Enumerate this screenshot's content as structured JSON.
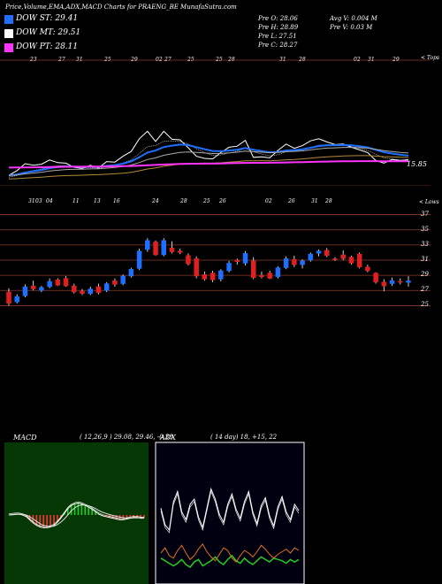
{
  "header": {
    "title": "Price,Volume,EMA,ADX,MACD Charts for PRAENG_BE MunafaSutra.com"
  },
  "legend": [
    {
      "label": "DOW ST: 29.41",
      "color": "#1f6fff"
    },
    {
      "label": "DOW MT: 29.51",
      "color": "#ffffff"
    },
    {
      "label": "DOW PT: 28.11",
      "color": "#ff33ff"
    }
  ],
  "ohlc": {
    "open": "Pre   O: 28.06",
    "high": "Pre   H: 28.89",
    "low": "Pre   L: 27.51",
    "close": "Pre   C: 28.27",
    "avg_volume": "Avg V: 0.004  M",
    "pre_volume": "Pre   V: 0.03 M"
  },
  "panel1": {
    "tops_label": "< Tops",
    "last_value": "15.85",
    "top_dates": [
      "23",
      "27",
      "31",
      "25",
      "29",
      "02",
      "27",
      "25",
      "25",
      "28",
      "31",
      "28",
      "02",
      "31",
      "29"
    ]
  },
  "panel2": {
    "lows_label": "< Lows",
    "low_dates": [
      "31",
      "03",
      "04",
      "11",
      "13",
      "16",
      "24",
      "28",
      "25",
      "26",
      "02",
      "26",
      "31",
      "28"
    ],
    "price_ticks": [
      "37",
      "35",
      "33",
      "31",
      "29",
      "27",
      "25"
    ]
  },
  "macd": {
    "label": "MACD",
    "values": "( 12,26,9 ) 29.08,  29.46,  -0.38"
  },
  "adx": {
    "label": "ADX",
    "values": "( 14  day) 18,  +15,  22"
  },
  "chart_data": [
    {
      "type": "candlestick",
      "name": "price",
      "yticks": [
        37,
        35,
        33,
        31,
        29,
        27,
        25
      ],
      "ylim": [
        24,
        38
      ],
      "candles": [
        {
          "o": 26.8,
          "h": 27.3,
          "l": 25.0,
          "c": 25.3
        },
        {
          "o": 25.5,
          "h": 26.5,
          "l": 25.3,
          "c": 26.2
        },
        {
          "o": 26.3,
          "h": 27.8,
          "l": 26.1,
          "c": 27.5
        },
        {
          "o": 27.6,
          "h": 28.3,
          "l": 27.0,
          "c": 27.2
        },
        {
          "o": 27.0,
          "h": 27.6,
          "l": 26.8,
          "c": 27.4
        },
        {
          "o": 27.5,
          "h": 28.6,
          "l": 27.3,
          "c": 28.2
        },
        {
          "o": 28.4,
          "h": 28.6,
          "l": 27.6,
          "c": 27.7
        },
        {
          "o": 28.6,
          "h": 28.9,
          "l": 27.5,
          "c": 27.6
        },
        {
          "o": 27.6,
          "h": 27.9,
          "l": 26.6,
          "c": 26.8
        },
        {
          "o": 26.9,
          "h": 27.2,
          "l": 26.4,
          "c": 26.6
        },
        {
          "o": 26.6,
          "h": 27.5,
          "l": 26.4,
          "c": 27.2
        },
        {
          "o": 27.5,
          "h": 27.9,
          "l": 26.5,
          "c": 26.7
        },
        {
          "o": 27.0,
          "h": 28.1,
          "l": 26.8,
          "c": 27.9
        },
        {
          "o": 28.3,
          "h": 28.6,
          "l": 27.5,
          "c": 27.8
        },
        {
          "o": 27.9,
          "h": 29.1,
          "l": 27.7,
          "c": 28.9
        },
        {
          "o": 28.9,
          "h": 30.0,
          "l": 28.7,
          "c": 29.8
        },
        {
          "o": 29.9,
          "h": 32.5,
          "l": 29.7,
          "c": 32.2
        },
        {
          "o": 32.4,
          "h": 33.9,
          "l": 32.1,
          "c": 33.6
        },
        {
          "o": 33.4,
          "h": 33.6,
          "l": 31.6,
          "c": 31.7
        },
        {
          "o": 31.7,
          "h": 33.9,
          "l": 31.5,
          "c": 33.6
        },
        {
          "o": 32.6,
          "h": 33.5,
          "l": 31.9,
          "c": 32.1
        },
        {
          "o": 32.2,
          "h": 32.5,
          "l": 31.8,
          "c": 32.0
        },
        {
          "o": 31.6,
          "h": 31.9,
          "l": 30.3,
          "c": 30.5
        },
        {
          "o": 31.2,
          "h": 31.5,
          "l": 28.6,
          "c": 28.9
        },
        {
          "o": 29.1,
          "h": 29.5,
          "l": 28.3,
          "c": 28.5
        },
        {
          "o": 29.3,
          "h": 29.6,
          "l": 28.1,
          "c": 28.4
        },
        {
          "o": 28.5,
          "h": 29.8,
          "l": 28.2,
          "c": 29.6
        },
        {
          "o": 29.6,
          "h": 30.9,
          "l": 29.4,
          "c": 30.6
        },
        {
          "o": 31.0,
          "h": 31.2,
          "l": 30.4,
          "c": 30.8
        },
        {
          "o": 30.6,
          "h": 32.2,
          "l": 30.3,
          "c": 31.9
        },
        {
          "o": 30.9,
          "h": 31.4,
          "l": 28.5,
          "c": 28.7
        },
        {
          "o": 29.0,
          "h": 29.5,
          "l": 28.6,
          "c": 28.8
        },
        {
          "o": 29.3,
          "h": 29.6,
          "l": 28.5,
          "c": 28.6
        },
        {
          "o": 28.8,
          "h": 30.2,
          "l": 28.6,
          "c": 30.0
        },
        {
          "o": 30.0,
          "h": 31.5,
          "l": 29.8,
          "c": 31.2
        },
        {
          "o": 31.1,
          "h": 31.6,
          "l": 30.1,
          "c": 30.4
        },
        {
          "o": 30.4,
          "h": 31.1,
          "l": 29.9,
          "c": 30.9
        },
        {
          "o": 31.0,
          "h": 32.0,
          "l": 30.8,
          "c": 31.8
        },
        {
          "o": 31.9,
          "h": 32.4,
          "l": 31.5,
          "c": 32.2
        },
        {
          "o": 32.3,
          "h": 32.6,
          "l": 31.4,
          "c": 31.6
        },
        {
          "o": 31.2,
          "h": 31.4,
          "l": 30.9,
          "c": 31.1
        },
        {
          "o": 31.7,
          "h": 32.3,
          "l": 31.0,
          "c": 31.2
        },
        {
          "o": 31.4,
          "h": 31.6,
          "l": 30.4,
          "c": 30.6
        },
        {
          "o": 31.8,
          "h": 32.0,
          "l": 29.9,
          "c": 30.1
        },
        {
          "o": 30.1,
          "h": 30.4,
          "l": 29.4,
          "c": 29.6
        },
        {
          "o": 29.3,
          "h": 29.4,
          "l": 27.9,
          "c": 28.1
        },
        {
          "o": 28.1,
          "h": 28.5,
          "l": 26.9,
          "c": 27.6
        },
        {
          "o": 27.9,
          "h": 28.7,
          "l": 27.6,
          "c": 28.3
        },
        {
          "o": 28.2,
          "h": 28.6,
          "l": 27.8,
          "c": 28.1
        },
        {
          "o": 28.06,
          "h": 28.89,
          "l": 27.51,
          "c": 28.27
        }
      ]
    },
    {
      "type": "line",
      "name": "macd-oscillator",
      "macd": [
        0.0,
        0.05,
        0.1,
        0.1,
        0.0,
        -0.2,
        -0.6,
        -1.0,
        -1.3,
        -1.5,
        -1.6,
        -1.6,
        -1.5,
        -1.3,
        -0.9,
        -0.4,
        0.2,
        0.8,
        1.2,
        1.4,
        1.5,
        1.4,
        1.2,
        1.0,
        0.7,
        0.4,
        0.1,
        -0.1,
        -0.2,
        -0.3,
        -0.4,
        -0.5,
        -0.6,
        -0.6,
        -0.5,
        -0.4,
        -0.3,
        -0.3,
        -0.4,
        -0.4
      ],
      "signal": [
        0.0,
        0.02,
        0.05,
        0.1,
        0.1,
        0.0,
        -0.2,
        -0.5,
        -0.8,
        -1.1,
        -1.3,
        -1.4,
        -1.45,
        -1.4,
        -1.2,
        -0.9,
        -0.5,
        0.0,
        0.5,
        0.9,
        1.15,
        1.25,
        1.25,
        1.15,
        1.0,
        0.8,
        0.55,
        0.35,
        0.2,
        0.05,
        -0.05,
        -0.15,
        -0.25,
        -0.35,
        -0.4,
        -0.4,
        -0.38,
        -0.36,
        -0.37,
        -0.38
      ]
    },
    {
      "type": "line",
      "name": "adx",
      "adx": [
        55,
        42,
        38,
        60,
        68,
        52,
        46,
        58,
        62,
        48,
        40,
        55,
        70,
        62,
        50,
        44,
        58,
        66,
        54,
        47,
        60,
        68,
        52,
        43,
        57,
        63,
        49,
        41,
        56,
        64,
        52,
        46,
        58,
        53
      ],
      "plus_di": [
        16,
        14,
        12,
        10,
        12,
        15,
        11,
        9,
        13,
        15,
        10,
        12,
        14,
        17,
        13,
        11,
        15,
        18,
        14,
        12,
        16,
        13,
        11,
        14,
        17,
        15,
        13,
        16,
        15,
        14,
        12,
        15,
        13,
        15
      ],
      "minus_di": [
        20,
        24,
        18,
        16,
        22,
        26,
        20,
        15,
        18,
        23,
        27,
        21,
        17,
        14,
        19,
        24,
        22,
        16,
        13,
        18,
        22,
        20,
        17,
        21,
        26,
        23,
        19,
        16,
        19,
        21,
        23,
        20,
        24,
        22
      ]
    }
  ]
}
